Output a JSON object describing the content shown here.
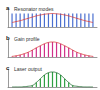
{
  "chart_data": [
    {
      "type": "bar",
      "title": "a",
      "subtitle": "Resonator modes",
      "x": [
        1,
        2,
        3,
        4,
        5,
        6,
        7,
        8,
        9,
        10,
        11,
        12,
        13,
        14,
        15,
        16,
        17,
        18,
        19,
        20,
        21
      ],
      "series": [
        {
          "type": "bar",
          "color": "#4a6fd0",
          "values": [
            0.9,
            0.9,
            0.9,
            0.9,
            0.9,
            0.9,
            0.9,
            0.9,
            0.9,
            0.9,
            0.9,
            0.9,
            0.9,
            0.9,
            0.9,
            0.9,
            0.9,
            0.9,
            0.9,
            0.9,
            0.9
          ]
        },
        {
          "type": "line",
          "color": "#d83a3a",
          "values": [
            0.3,
            0.36,
            0.42,
            0.5,
            0.58,
            0.66,
            0.74,
            0.8,
            0.85,
            0.88,
            0.9,
            0.88,
            0.85,
            0.8,
            0.74,
            0.66,
            0.58,
            0.5,
            0.42,
            0.36,
            0.3
          ]
        }
      ],
      "xlim": [
        0,
        22
      ],
      "ylim": [
        0,
        1.2
      ],
      "tick_labels": false,
      "grid": false
    },
    {
      "type": "bar",
      "title": "b",
      "subtitle": "Gain profile",
      "x": [
        1,
        2,
        3,
        4,
        5,
        6,
        7,
        8,
        9,
        10,
        11,
        12,
        13,
        14,
        15,
        16,
        17,
        18,
        19,
        20,
        21
      ],
      "series": [
        {
          "type": "bar",
          "color": "#d0308a",
          "values": [
            0.04,
            0.08,
            0.14,
            0.22,
            0.32,
            0.46,
            0.61,
            0.75,
            0.88,
            0.97,
            1.0,
            0.97,
            0.88,
            0.75,
            0.61,
            0.46,
            0.32,
            0.22,
            0.14,
            0.08,
            0.04
          ]
        },
        {
          "type": "line",
          "color": "#d83a3a",
          "values": [
            0.04,
            0.08,
            0.14,
            0.22,
            0.32,
            0.46,
            0.61,
            0.75,
            0.88,
            0.97,
            1.0,
            0.97,
            0.88,
            0.75,
            0.61,
            0.46,
            0.32,
            0.22,
            0.14,
            0.08,
            0.04
          ]
        }
      ],
      "xlim": [
        0,
        22
      ],
      "ylim": [
        0,
        1.2
      ],
      "tick_labels": false,
      "grid": false
    },
    {
      "type": "bar",
      "title": "c",
      "subtitle": "Laser output",
      "x": [
        1,
        2,
        3,
        4,
        5,
        6,
        7,
        8,
        9,
        10,
        11,
        12,
        13,
        14,
        15,
        16,
        17,
        18,
        19,
        20,
        21
      ],
      "series": [
        {
          "type": "bar",
          "color": "#2ea043",
          "values": [
            0,
            0,
            0,
            0,
            0,
            0.1,
            0.3,
            0.55,
            0.8,
            0.95,
            1.0,
            0.95,
            0.8,
            0.55,
            0.3,
            0.1,
            0,
            0,
            0,
            0,
            0
          ]
        },
        {
          "type": "line",
          "color": "#1f6b30",
          "values": [
            0,
            0,
            0,
            0.02,
            0.05,
            0.1,
            0.3,
            0.55,
            0.8,
            0.95,
            1.0,
            0.95,
            0.8,
            0.55,
            0.3,
            0.1,
            0.05,
            0.02,
            0,
            0,
            0
          ]
        }
      ],
      "xlim": [
        0,
        22
      ],
      "ylim": [
        0,
        1.2
      ],
      "tick_labels": false,
      "grid": false
    }
  ]
}
